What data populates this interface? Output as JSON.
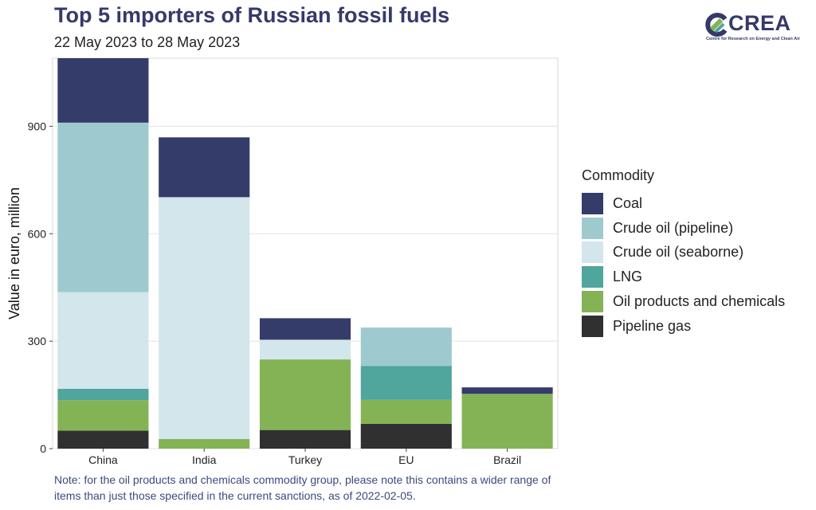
{
  "title": "Top 5 importers of Russian fossil fuels",
  "subtitle": "22 May 2023 to 28 May 2023",
  "logo": {
    "name": "CREA",
    "tagline": "Centre for Research on Energy and Clean Air"
  },
  "note": "Note: for the oil products and chemicals commodity group, please note this contains a wider range of items than just those specified in the current sanctions, as of 2022-02-05.",
  "chart_data": {
    "type": "bar",
    "stacked": true,
    "categories": [
      "China",
      "India",
      "Turkey",
      "EU",
      "Brazil"
    ],
    "series": [
      {
        "name": "Pipeline gas",
        "color": "#303030",
        "values": [
          50,
          0,
          52,
          69,
          0
        ]
      },
      {
        "name": "Oil products and chemicals",
        "color": "#84b356",
        "values": [
          85,
          27,
          197,
          67,
          153
        ]
      },
      {
        "name": "LNG",
        "color": "#50a59c",
        "values": [
          32,
          0,
          0,
          95,
          0
        ]
      },
      {
        "name": "Crude oil (seaborne)",
        "color": "#d2e6ec",
        "values": [
          270,
          675,
          55,
          0,
          0
        ]
      },
      {
        "name": "Crude oil (pipeline)",
        "color": "#9ecacf",
        "values": [
          473,
          0,
          0,
          107,
          0
        ]
      },
      {
        "name": "Coal",
        "color": "#343c6a",
        "values": [
          180,
          167,
          60,
          0,
          18
        ]
      }
    ],
    "legend_title": "Commodity",
    "legend_order": [
      "Coal",
      "Crude oil (pipeline)",
      "Crude oil (seaborne)",
      "LNG",
      "Oil products and chemicals",
      "Pipeline gas"
    ],
    "legend_position": "right",
    "ylabel": "Value in euro, million",
    "xlabel": "",
    "yticks": [
      0,
      300,
      600,
      900
    ],
    "ylim": [
      0,
      1090
    ],
    "grid": true
  }
}
